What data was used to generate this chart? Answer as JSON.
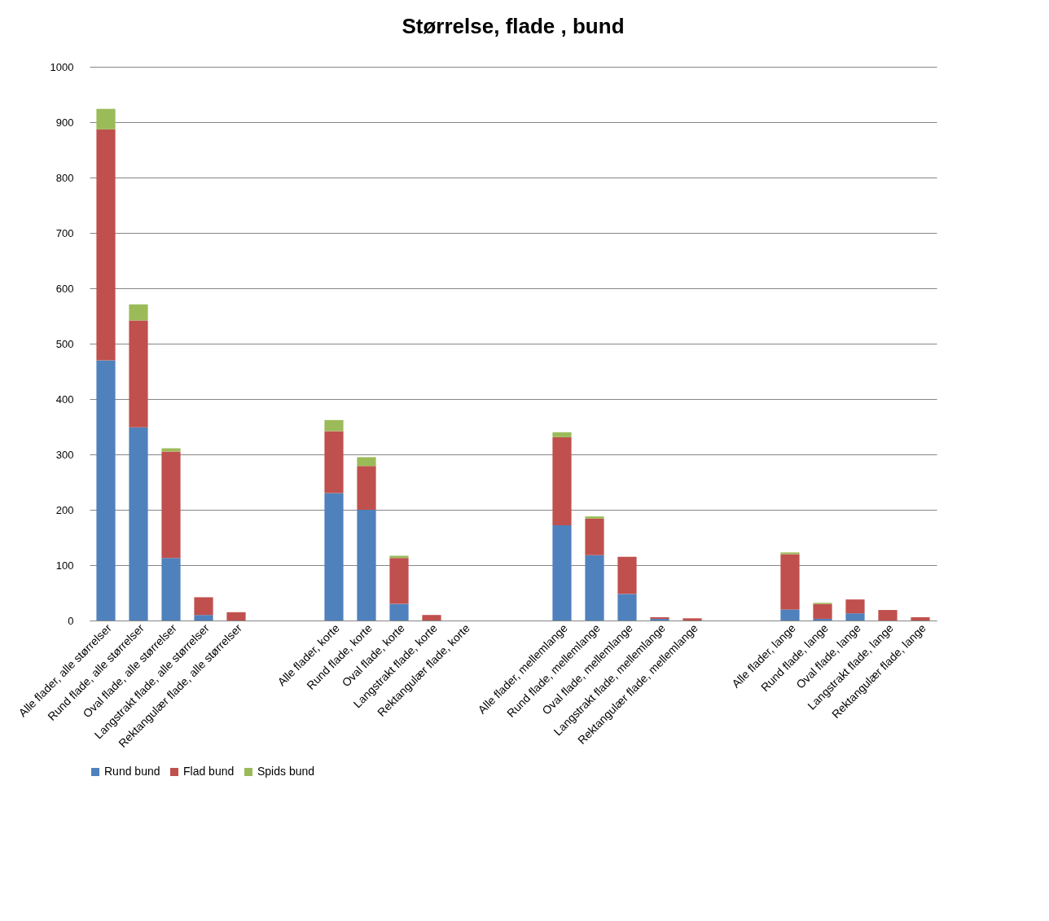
{
  "chart_data": {
    "type": "bar",
    "title": "Størrelse, flade , bund",
    "stacked": true,
    "grid": "y",
    "legend": "bottom",
    "categories": [
      "Alle flader, alle størrelser",
      "Rund flade, alle størrelser",
      "Oval flade, alle størrelser",
      "Langstrakt flade, alle størrelser",
      "Rektangulær flade, alle størrelser",
      null,
      null,
      "Alle flader, korte",
      "Rund flade, korte",
      "Oval flade, korte",
      "Langstrakt flade, korte",
      "Rektangulær flade, korte",
      null,
      null,
      "Alle flader, mellemlange",
      "Rund flade, mellemlange",
      "Oval flade, mellemlange",
      "Langstrakt flade, mellemlange",
      "Rektangulær flade, mellemlange",
      null,
      null,
      "Alle flader, lange",
      "Rund flade, lange",
      "Oval flade, lange",
      "Langstrakt flade, lange",
      "Rektangulær flade, lange"
    ],
    "ylim": [
      0,
      1000
    ],
    "yticks": [
      0,
      100,
      200,
      300,
      400,
      500,
      600,
      700,
      800,
      900,
      1000
    ],
    "series": [
      {
        "name": "Rund bund",
        "color": "#4f81bd",
        "values": [
          470,
          349,
          113,
          10,
          0,
          null,
          null,
          230,
          200,
          30,
          0,
          0,
          null,
          null,
          172,
          118,
          48,
          3,
          0,
          null,
          null,
          20,
          3,
          13,
          0,
          0
        ]
      },
      {
        "name": "Flad bund",
        "color": "#c0504d",
        "values": [
          417,
          193,
          192,
          32,
          15,
          null,
          null,
          112,
          79,
          83,
          10,
          0,
          null,
          null,
          159,
          66,
          67,
          3,
          4,
          null,
          null,
          100,
          27,
          25,
          19,
          6
        ]
      },
      {
        "name": "Spids bund",
        "color": "#9bbb59",
        "values": [
          37,
          29,
          6,
          0,
          0,
          null,
          null,
          20,
          16,
          4,
          0,
          0,
          null,
          null,
          9,
          4,
          0,
          0,
          0,
          null,
          null,
          3,
          2,
          0,
          0,
          0
        ]
      }
    ]
  }
}
